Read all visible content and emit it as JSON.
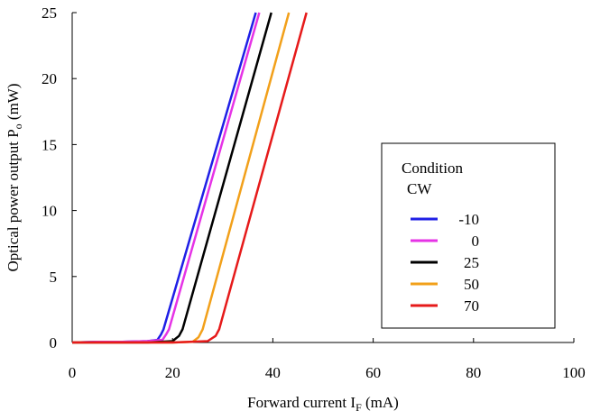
{
  "chart_data": {
    "type": "line",
    "xlabel": "Forward current I",
    "xlabel_sub": "F",
    "xlabel_unit": " (mA)",
    "ylabel": "Optical power output P",
    "ylabel_sub": "o",
    "ylabel_unit": " (mW)",
    "xlim": [
      0,
      100
    ],
    "ylim": [
      0,
      25
    ],
    "xticks": [
      0,
      20,
      40,
      60,
      80,
      100
    ],
    "yticks": [
      0,
      5,
      10,
      15,
      20,
      25
    ],
    "xtick_labels": [
      "0",
      "20",
      "40",
      "60",
      "80",
      "100"
    ],
    "ytick_labels": [
      "0",
      "5",
      "10",
      "15",
      "20",
      "25"
    ],
    "grid": false,
    "legend_placement": "right",
    "legend": {
      "title_line1": "Condition",
      "title_line2": "CW"
    },
    "series": [
      {
        "name": "-10",
        "color": "#1f1fe6",
        "x": [
          0,
          5,
          10,
          15,
          17,
          17.7,
          18.2,
          36.6
        ],
        "y": [
          0,
          0.05,
          0.05,
          0.1,
          0.2,
          0.6,
          1.0,
          25
        ]
      },
      {
        "name": "0",
        "color": "#e633e6",
        "x": [
          0,
          5,
          10,
          15,
          18,
          18.7,
          19.3,
          37.3
        ],
        "y": [
          0,
          0.05,
          0.05,
          0.1,
          0.2,
          0.6,
          1.0,
          25
        ]
      },
      {
        "name": "25",
        "color": "#000000",
        "x": [
          0,
          5,
          10,
          15,
          20,
          21.3,
          22.0,
          39.7
        ],
        "y": [
          0,
          0.0,
          0.0,
          0.0,
          0.1,
          0.5,
          1.0,
          25
        ]
      },
      {
        "name": "50",
        "color": "#f2a01a",
        "x": [
          0,
          10,
          20,
          24,
          25.2,
          26.0,
          43.2
        ],
        "y": [
          0,
          0.0,
          0.0,
          0.05,
          0.4,
          1.0,
          25
        ]
      },
      {
        "name": "70",
        "color": "#e61a1a",
        "x": [
          0,
          10,
          20,
          27,
          28.6,
          29.3,
          46.7
        ],
        "y": [
          0,
          0.0,
          0.0,
          0.1,
          0.5,
          1.0,
          25
        ]
      }
    ]
  }
}
